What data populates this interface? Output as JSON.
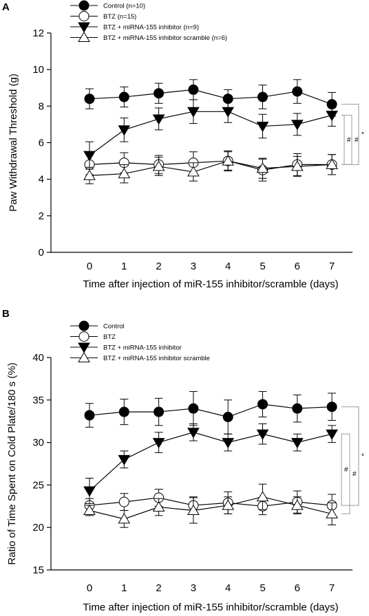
{
  "chart_data": [
    {
      "type": "line",
      "panel": "A",
      "xlabel": "Time after injection of miR-155 inhibitor/scramble (days)",
      "ylabel": "Paw Withdrawal Threshold (g)",
      "x": [
        0,
        1,
        2,
        3,
        4,
        5,
        6,
        7
      ],
      "xlim": [
        -1,
        8
      ],
      "ylim": [
        0,
        12
      ],
      "yticks": [
        0,
        2,
        4,
        6,
        8,
        10,
        12
      ],
      "grid": false,
      "legend_placement": "top-left",
      "series": [
        {
          "name": "Control (n=10)",
          "marker": "filled-circle",
          "values": [
            8.4,
            8.5,
            8.7,
            8.9,
            8.4,
            8.5,
            8.8,
            8.1
          ],
          "errors": [
            0.55,
            0.55,
            0.55,
            0.55,
            0.5,
            0.65,
            0.65,
            0.65
          ]
        },
        {
          "name": "BTZ (n=15)",
          "marker": "open-circle",
          "values": [
            4.8,
            4.9,
            4.8,
            4.9,
            5.0,
            4.5,
            4.8,
            4.8
          ],
          "errors": [
            0.55,
            0.55,
            0.5,
            0.6,
            0.55,
            0.6,
            0.6,
            0.55
          ]
        },
        {
          "name": "BTZ + miRNA-155 inhibitor (n=9)",
          "marker": "filled-triangle-down",
          "values": [
            5.3,
            6.7,
            7.3,
            7.7,
            7.7,
            6.9,
            7.0,
            7.5
          ],
          "errors": [
            0.75,
            0.65,
            0.6,
            0.65,
            0.6,
            0.65,
            0.6,
            0.6
          ]
        },
        {
          "name": "BTZ + miRNA-155 inhibitor scramble (n=6)",
          "marker": "open-triangle-up",
          "values": [
            4.2,
            4.3,
            4.7,
            4.4,
            5.0,
            4.6,
            4.7,
            4.8
          ],
          "errors": [
            0.45,
            0.5,
            0.5,
            0.5,
            0.5,
            0.55,
            0.55,
            0.55
          ]
        }
      ],
      "annotations": [
        {
          "text": "#",
          "from": 2,
          "to": 1
        },
        {
          "text": "#",
          "from": 2,
          "to": 3
        },
        {
          "text": "*",
          "from": 0,
          "to": 1
        }
      ]
    },
    {
      "type": "line",
      "panel": "B",
      "xlabel": "Time after injection of miR-155 inhibitor/scramble (days)",
      "ylabel": "Ratio of Time Spent on Cold Plate/180 s (%)",
      "x": [
        0,
        1,
        2,
        3,
        4,
        5,
        6,
        7
      ],
      "xlim": [
        -1,
        8
      ],
      "ylim": [
        15,
        40
      ],
      "yticks": [
        15,
        20,
        25,
        30,
        35,
        40
      ],
      "grid": false,
      "legend_placement": "top-left",
      "series": [
        {
          "name": "Control",
          "marker": "filled-circle",
          "values": [
            33.2,
            33.6,
            33.6,
            34.0,
            33.0,
            34.5,
            34.0,
            34.2
          ],
          "errors": [
            1.4,
            1.5,
            1.6,
            2.0,
            2.0,
            1.5,
            1.6,
            1.6
          ]
        },
        {
          "name": "BTZ",
          "marker": "open-circle",
          "values": [
            22.6,
            23.0,
            23.5,
            22.6,
            22.9,
            22.5,
            23.0,
            22.6
          ],
          "errors": [
            0.8,
            1.0,
            1.0,
            1.0,
            1.3,
            1.0,
            1.3,
            1.3
          ]
        },
        {
          "name": "BTZ + miRNA-155 inhibitor",
          "marker": "filled-triangle-down",
          "values": [
            24.3,
            28.0,
            30.0,
            31.2,
            30.0,
            31.0,
            30.0,
            31.0
          ],
          "errors": [
            1.5,
            1.0,
            1.2,
            1.0,
            1.0,
            1.2,
            1.0,
            1.0
          ]
        },
        {
          "name": "BTZ + miRNA-155 inhibitor scramble",
          "marker": "open-triangle-up",
          "values": [
            22.0,
            21.0,
            22.4,
            22.0,
            22.6,
            23.6,
            22.6,
            21.6
          ],
          "errors": [
            0.6,
            1.0,
            1.0,
            1.5,
            1.0,
            1.5,
            1.0,
            1.3
          ]
        }
      ],
      "annotations": [
        {
          "text": "#",
          "from": 2,
          "to": 1
        },
        {
          "text": "#",
          "from": 2,
          "to": 3
        },
        {
          "text": "*",
          "from": 0,
          "to": 1
        }
      ]
    }
  ]
}
